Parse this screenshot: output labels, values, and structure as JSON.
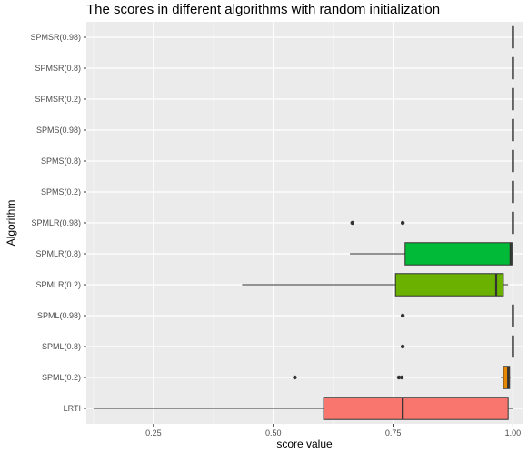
{
  "chart_data": {
    "type": "boxplot",
    "orientation": "horizontal",
    "title": "The scores in different algorithms with random initialization",
    "xlabel": "score value",
    "ylabel": "Algorithm",
    "xlim": [
      0.11,
      1.02
    ],
    "xticks": [
      0.25,
      0.5,
      0.75,
      1.0
    ],
    "xtick_labels": [
      "0.25",
      "0.50",
      "0.75",
      "1.00"
    ],
    "grid": true,
    "legend": "none",
    "categories": [
      "LRTI",
      "SPML(0.2)",
      "SPML(0.8)",
      "SPML(0.98)",
      "SPMLR(0.2)",
      "SPMLR(0.8)",
      "SPMLR(0.98)",
      "SPMS(0.2)",
      "SPMS(0.8)",
      "SPMS(0.98)",
      "SPMSR(0.2)",
      "SPMSR(0.8)",
      "SPMSR(0.98)"
    ],
    "boxes": [
      {
        "name": "LRTI",
        "min": 0.125,
        "q1": 0.605,
        "median": 0.77,
        "q3": 0.99,
        "max": 1.0,
        "outliers": [],
        "color": "#F8766D"
      },
      {
        "name": "SPML(0.2)",
        "min": 0.975,
        "q1": 0.98,
        "median": 0.99,
        "q3": 0.993,
        "max": 0.995,
        "outliers": [
          0.545,
          0.762,
          0.768
        ],
        "color": "#E58700"
      },
      {
        "name": "SPML(0.8)",
        "min": 0.999,
        "q1": 1.0,
        "median": 1.0,
        "q3": 1.0,
        "max": 1.0,
        "outliers": [
          0.77
        ],
        "color": "#C99800"
      },
      {
        "name": "SPML(0.98)",
        "min": 0.999,
        "q1": 1.0,
        "median": 1.0,
        "q3": 1.0,
        "max": 1.0,
        "outliers": [
          0.77
        ],
        "color": "#A3A500"
      },
      {
        "name": "SPMLR(0.2)",
        "min": 0.435,
        "q1": 0.755,
        "median": 0.965,
        "q3": 0.98,
        "max": 0.99,
        "outliers": [],
        "color": "#6BB100"
      },
      {
        "name": "SPMLR(0.8)",
        "min": 0.66,
        "q1": 0.775,
        "median": 0.995,
        "q3": 0.998,
        "max": 1.0,
        "outliers": [],
        "color": "#00BA38"
      },
      {
        "name": "SPMLR(0.98)",
        "min": 0.999,
        "q1": 1.0,
        "median": 1.0,
        "q3": 1.0,
        "max": 1.0,
        "outliers": [
          0.665,
          0.77
        ],
        "color": "#00BF7D"
      },
      {
        "name": "SPMS(0.2)",
        "min": 1.0,
        "q1": 1.0,
        "median": 1.0,
        "q3": 1.0,
        "max": 1.0,
        "outliers": [],
        "color": "#00C0AF"
      },
      {
        "name": "SPMS(0.8)",
        "min": 1.0,
        "q1": 1.0,
        "median": 1.0,
        "q3": 1.0,
        "max": 1.0,
        "outliers": [],
        "color": "#00BCD8"
      },
      {
        "name": "SPMS(0.98)",
        "min": 1.0,
        "q1": 1.0,
        "median": 1.0,
        "q3": 1.0,
        "max": 1.0,
        "outliers": [],
        "color": "#00B0F6"
      },
      {
        "name": "SPMSR(0.2)",
        "min": 1.0,
        "q1": 1.0,
        "median": 1.0,
        "q3": 1.0,
        "max": 1.0,
        "outliers": [],
        "color": "#619CFF"
      },
      {
        "name": "SPMSR(0.8)",
        "min": 1.0,
        "q1": 1.0,
        "median": 1.0,
        "q3": 1.0,
        "max": 1.0,
        "outliers": [],
        "color": "#B983FF"
      },
      {
        "name": "SPMSR(0.98)",
        "min": 1.0,
        "q1": 1.0,
        "median": 1.0,
        "q3": 1.0,
        "max": 1.0,
        "outliers": [],
        "color": "#E76BF3"
      }
    ]
  }
}
